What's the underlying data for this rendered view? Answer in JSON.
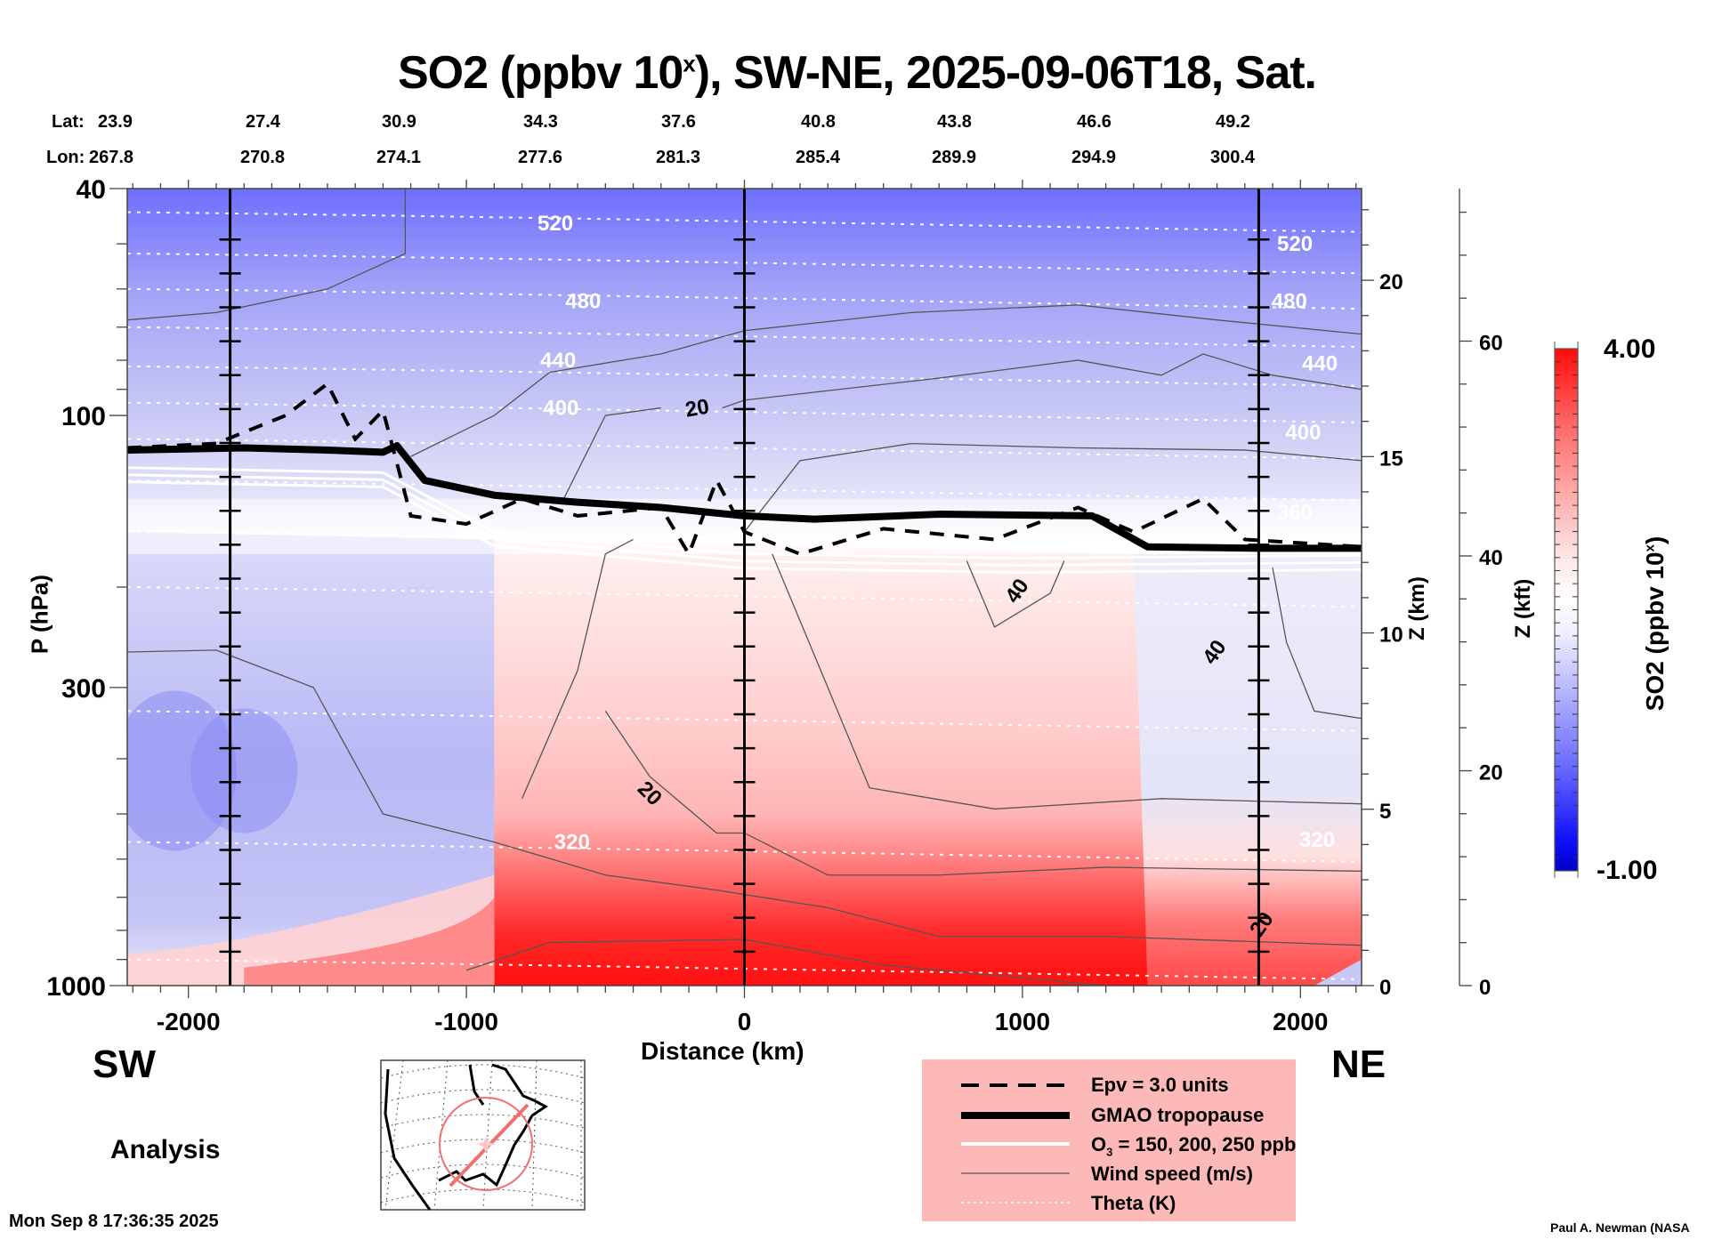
{
  "chart_data": {
    "type": "heatmap",
    "title": "SO2 (ppbv 10",
    "title_sup": "x",
    "title_rest": "), SW-NE, 2025-09-06T18, Sat.",
    "xlabel": "Distance (km)",
    "ylabel": "P (hPa)",
    "xlim": [
      -2220,
      2220
    ],
    "ylim": [
      1000,
      40
    ],
    "yscale": "log",
    "x_ticks": [
      -2000,
      -1000,
      0,
      1000,
      2000
    ],
    "x_tick_labels": [
      "-2000",
      "-1000",
      "0",
      "1000",
      "2000"
    ],
    "y_ticks": [
      40,
      100,
      300,
      1000
    ],
    "y_tick_labels": [
      "40",
      "100",
      "300",
      "1000"
    ],
    "z_km_axis": {
      "label": "Z (km)",
      "ticks": [
        0,
        5,
        10,
        15,
        20
      ],
      "tick_labels": [
        "0",
        "5",
        "10",
        "15",
        "20"
      ]
    },
    "z_kft_axis": {
      "label": "Z (kft)",
      "ticks": [
        0,
        20,
        40,
        60
      ],
      "tick_labels": [
        "0",
        "20",
        "40",
        "60"
      ]
    },
    "lat_label": "Lat:",
    "lon_label": "Lon:",
    "lat_values": [
      "23.9",
      "27.4",
      "30.9",
      "34.3",
      "37.6",
      "40.8",
      "43.8",
      "46.6",
      "49.2"
    ],
    "lon_values": [
      "267.8",
      "270.8",
      "274.1",
      "277.6",
      "281.3",
      "285.4",
      "289.9",
      "294.9",
      "300.4"
    ],
    "reference_lines_km": [
      -1850,
      0,
      1850
    ],
    "colorbar": {
      "label": "SO2 (ppbv 10",
      "label_sup": "x",
      "label_rest": ")",
      "min": -1.0,
      "max": 4.0,
      "min_label": "-1.00",
      "max_label": "4.00",
      "low_color": "#0000c8",
      "mid_color": "#ffffff",
      "high_color": "#ff0a0a"
    },
    "theta_labels": [
      {
        "value": "520",
        "x_km": -680,
        "p": 46
      },
      {
        "value": "480",
        "x_km": -580,
        "p": 63
      },
      {
        "value": "440",
        "x_km": -670,
        "p": 80
      },
      {
        "value": "400",
        "x_km": -660,
        "p": 97
      },
      {
        "value": "520",
        "x_km": 1980,
        "p": 50
      },
      {
        "value": "480",
        "x_km": 1960,
        "p": 63
      },
      {
        "value": "440",
        "x_km": 2070,
        "p": 81
      },
      {
        "value": "400",
        "x_km": 2010,
        "p": 107
      },
      {
        "value": "360",
        "x_km": 1980,
        "p": 148
      },
      {
        "value": "320",
        "x_km": -620,
        "p": 560
      },
      {
        "value": "320",
        "x_km": 2060,
        "p": 555
      }
    ],
    "wind_labels": [
      {
        "value": "20",
        "x_km": -170,
        "p": 97
      },
      {
        "value": "20",
        "x_km": -340,
        "p": 460
      },
      {
        "value": "40",
        "x_km": 980,
        "p": 203
      },
      {
        "value": "40",
        "x_km": 1690,
        "p": 260
      },
      {
        "value": "20",
        "x_km": 1860,
        "p": 780
      }
    ],
    "tropopause_p": [
      {
        "x": -2220,
        "p": 115
      },
      {
        "x": -1800,
        "p": 114
      },
      {
        "x": -1500,
        "p": 115
      },
      {
        "x": -1300,
        "p": 116
      },
      {
        "x": -1250,
        "p": 113
      },
      {
        "x": -1150,
        "p": 130
      },
      {
        "x": -900,
        "p": 138
      },
      {
        "x": -600,
        "p": 142
      },
      {
        "x": -300,
        "p": 145
      },
      {
        "x": 0,
        "p": 150
      },
      {
        "x": 250,
        "p": 152
      },
      {
        "x": 700,
        "p": 149
      },
      {
        "x": 1250,
        "p": 150
      },
      {
        "x": 1450,
        "p": 170
      },
      {
        "x": 1850,
        "p": 171
      },
      {
        "x": 2220,
        "p": 171
      }
    ],
    "so2_field_summary": {
      "upper_stratosphere": -0.8,
      "lower_stratosphere": 0.0,
      "mid_troposphere_west": -0.4,
      "mid_troposphere_center": 1.2,
      "boundary_layer_center": 3.8,
      "boundary_layer_west": 0.6
    }
  },
  "annotations": {
    "sw": "SW",
    "ne": "NE",
    "analysis": "Analysis",
    "timestamp": "Mon Sep  8 17:36:35 2025",
    "credit": "Paul A. Newman (NASA"
  },
  "legend": {
    "items": [
      {
        "style": "dashed",
        "label": "Epv = 3.0 units"
      },
      {
        "style": "thick",
        "label": "GMAO tropopause"
      },
      {
        "style": "white",
        "label_pre": "O",
        "label_sub": "3",
        "label": " = 150, 200, 250 ppb"
      },
      {
        "style": "thin",
        "label": "Wind speed (m/s)"
      },
      {
        "style": "dotted",
        "label": "Theta (K)"
      }
    ],
    "background": "#fdb8b8"
  },
  "map_inset": {
    "track_color": "#f07070",
    "circle_color": "#f07070"
  }
}
